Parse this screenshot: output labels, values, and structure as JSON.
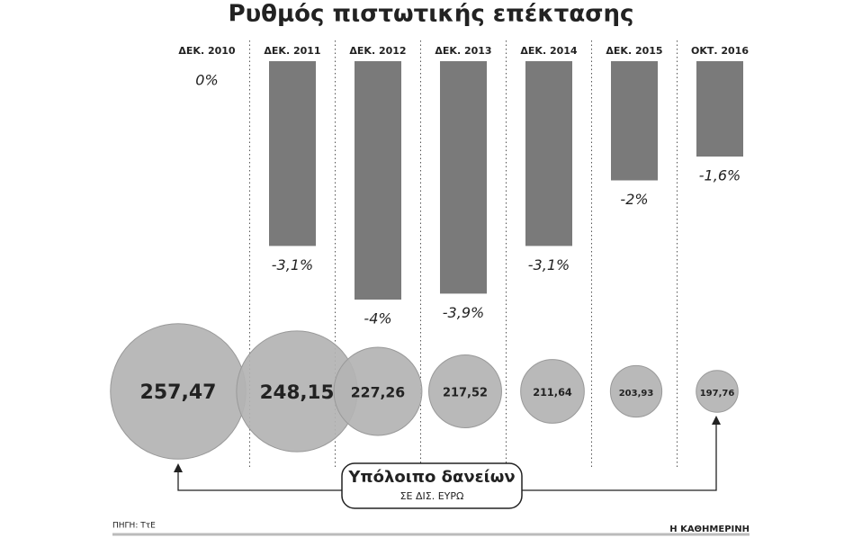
{
  "chart_data": [
    {
      "type": "bar",
      "title": "Ρυθμός πιστωτικής επέκτασης",
      "categories": [
        "ΔΕΚ. 2010",
        "ΔΕΚ. 2011",
        "ΔΕΚ. 2012",
        "ΔΕΚ. 2013",
        "ΔΕΚ. 2014",
        "ΔΕΚ. 2015",
        "ΟΚΤ. 2016"
      ],
      "values": [
        0,
        -3.1,
        -4,
        -3.9,
        -3.1,
        -2,
        -1.6
      ],
      "value_labels": [
        "0%",
        "-3,1%",
        "-4%",
        "-3,9%",
        "-3,1%",
        "-2%",
        "-1,6%"
      ],
      "color": "#7a7a7a",
      "ylim": [
        -4,
        0
      ],
      "source": "ΠΗΓΗ: ΤτΕ",
      "credit": "Η ΚΑΘΗΜΕΡΙΝΗ"
    },
    {
      "type": "bubble",
      "title": "Υπόλοιπο δανείων",
      "subtitle": "ΣΕ ΔΙΣ. ΕΥΡΩ",
      "values": [
        257.47,
        248.15,
        227.26,
        217.52,
        211.64,
        203.93,
        197.76
      ],
      "value_labels": [
        "257,47",
        "248,15",
        "227,26",
        "217,52",
        "211,64",
        "203,93",
        "197,76"
      ],
      "color": "#b3b3b3"
    }
  ]
}
